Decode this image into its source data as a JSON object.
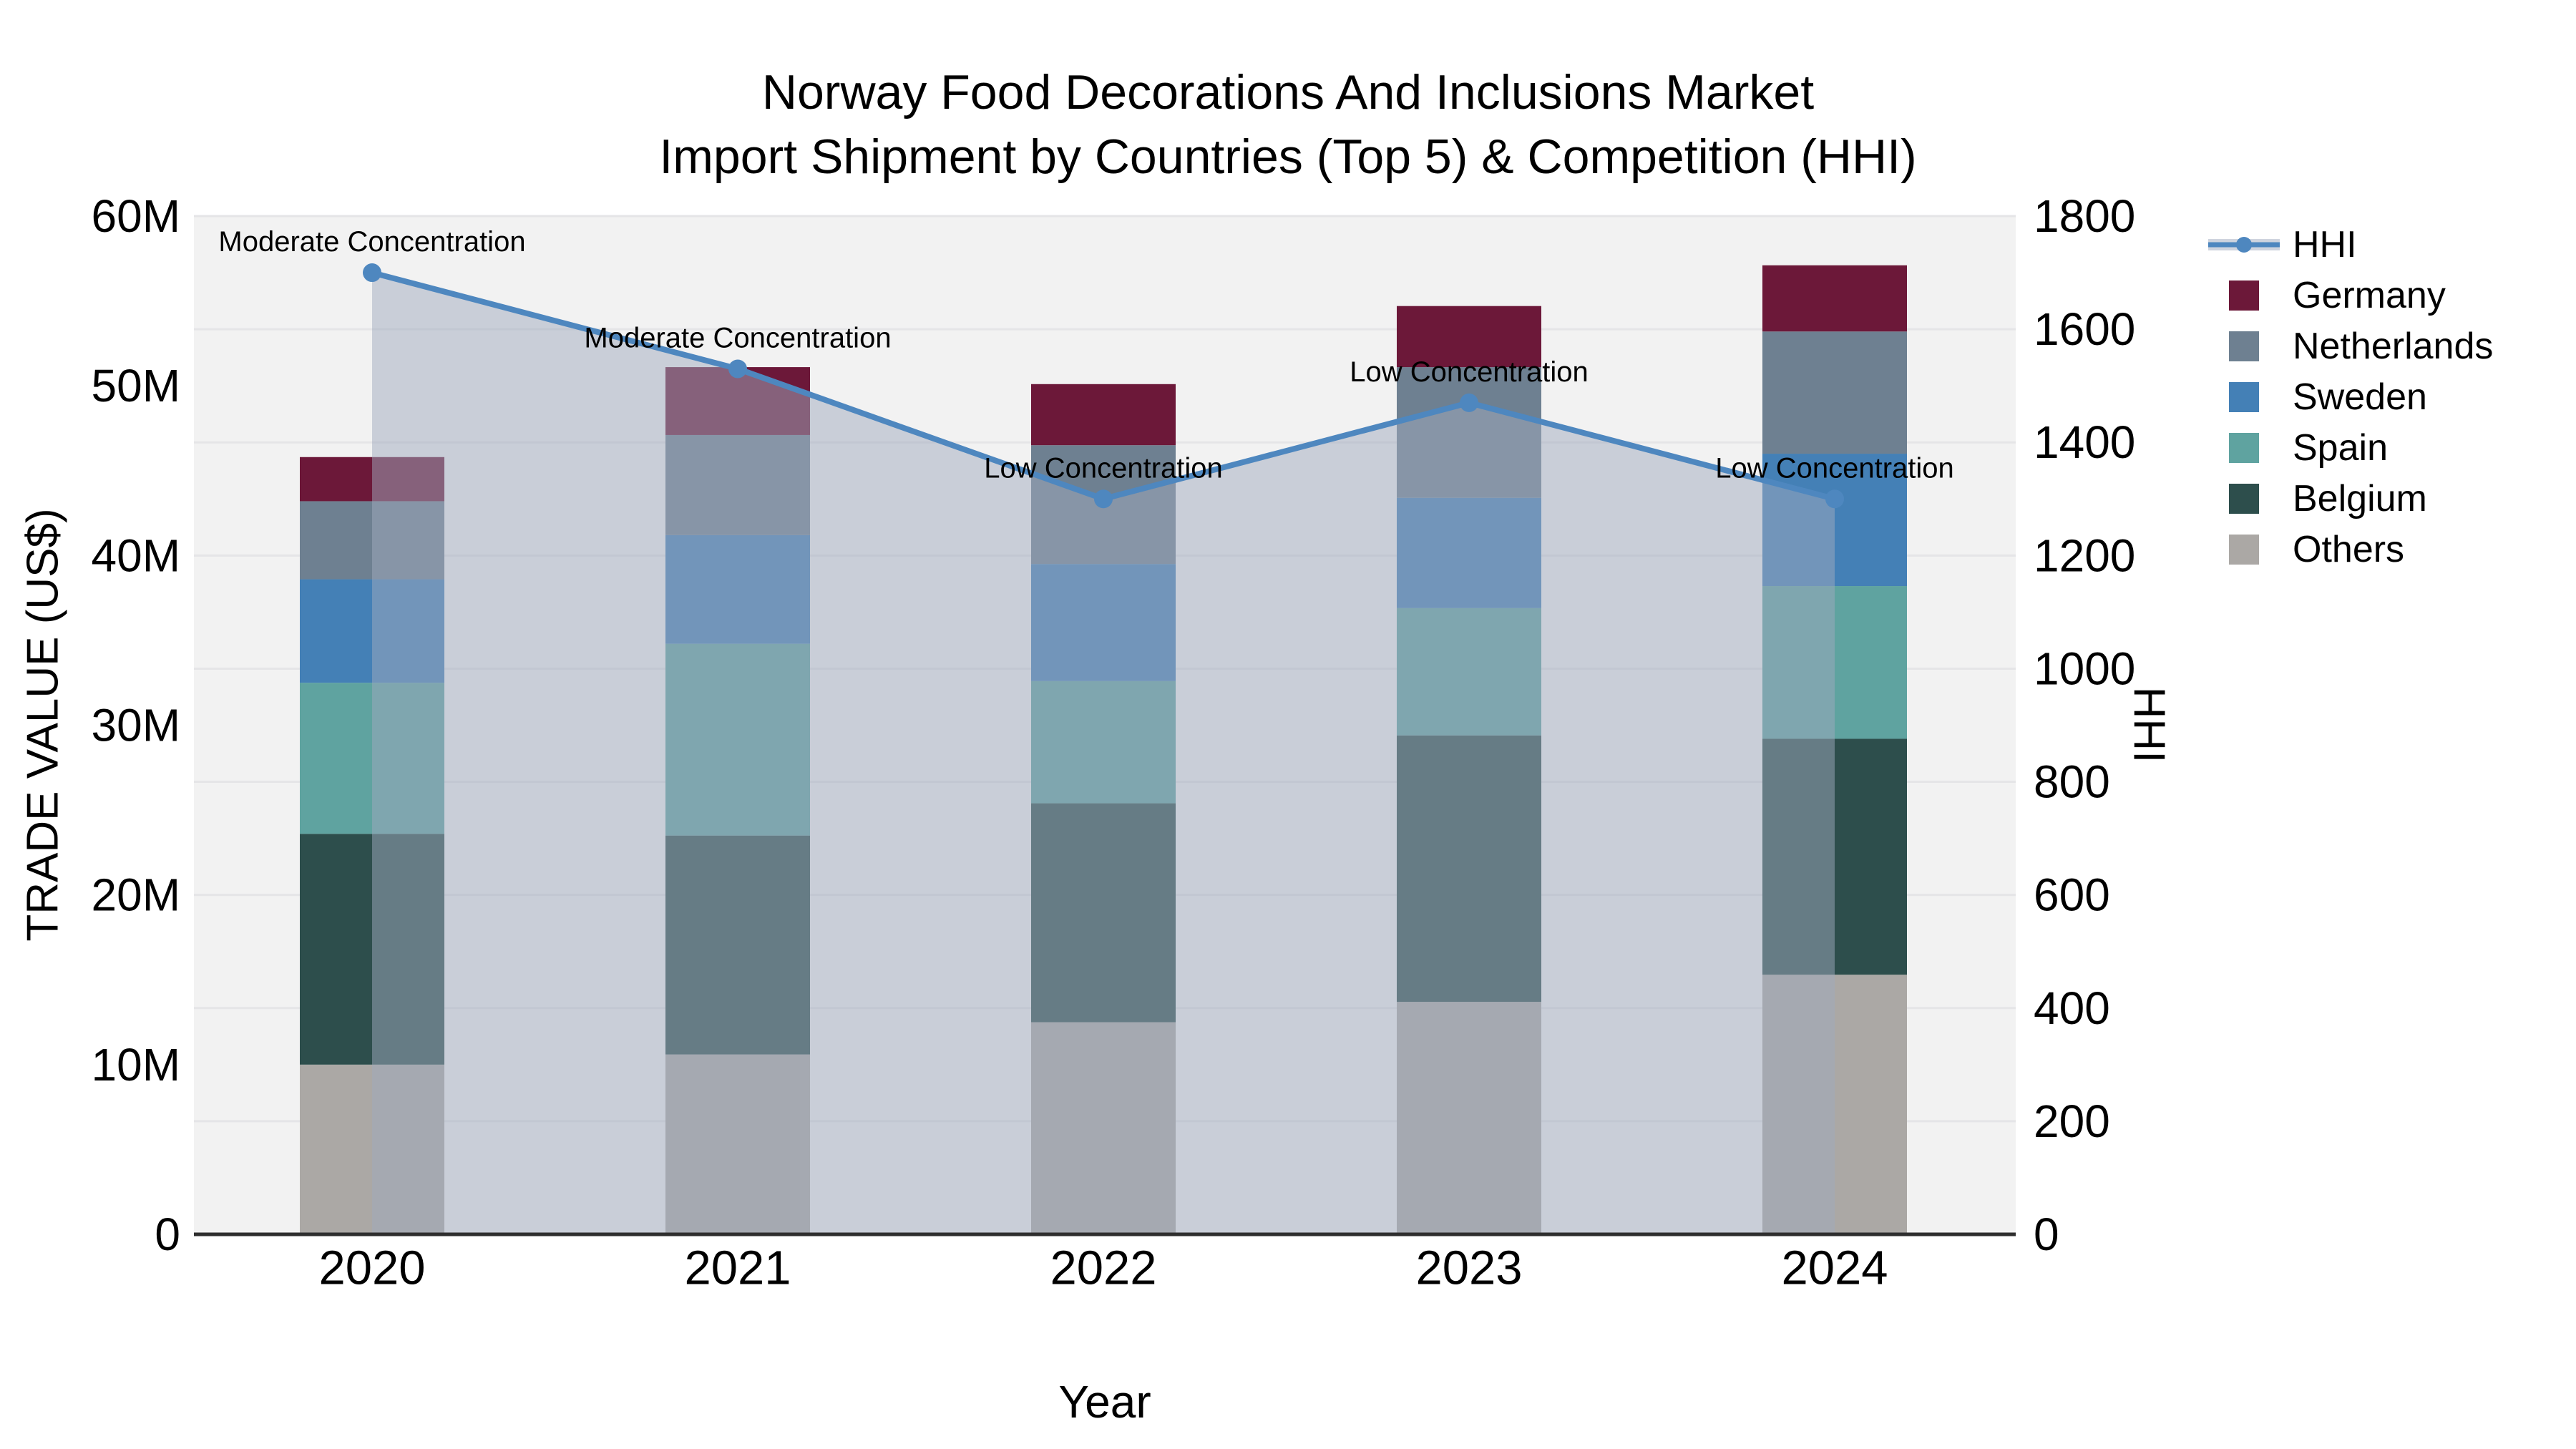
{
  "chart_data": {
    "type": "stacked-bar+line",
    "title_line1": "Norway Food Decorations And Inclusions Market",
    "title_line2": "Import Shipment by Countries (Top 5) & Competition (HHI)",
    "xlabel": "Year",
    "ylabel_left": "TRADE VALUE (US$)",
    "ylabel_right": "HHI",
    "categories": [
      "2020",
      "2021",
      "2022",
      "2023",
      "2024"
    ],
    "bar_value_unit": "million US$",
    "bar_series": [
      {
        "name": "Germany",
        "color": "#6C1839",
        "values": [
          2.6,
          4.0,
          3.6,
          3.6,
          3.9
        ]
      },
      {
        "name": "Netherlands",
        "color": "#6E8091",
        "values": [
          4.6,
          5.9,
          7.0,
          7.7,
          7.2
        ]
      },
      {
        "name": "Sweden",
        "color": "#4480B6",
        "values": [
          6.1,
          6.4,
          6.9,
          6.5,
          7.8
        ]
      },
      {
        "name": "Spain",
        "color": "#5FA3A0",
        "values": [
          8.9,
          11.3,
          7.2,
          7.5,
          9.0
        ]
      },
      {
        "name": "Belgium",
        "color": "#2D4E4C",
        "values": [
          13.6,
          12.9,
          12.9,
          15.7,
          13.9
        ]
      },
      {
        "name": "Others",
        "color": "#ABA8A5",
        "values": [
          10.0,
          10.6,
          12.5,
          13.7,
          15.3
        ]
      }
    ],
    "stack_order_bottom_to_top": [
      "Others",
      "Belgium",
      "Spain",
      "Sweden",
      "Netherlands",
      "Germany"
    ],
    "line_series": {
      "name": "HHI",
      "color": "#4E87BF",
      "area_color": "rgba(160,170,190,0.5)",
      "values": [
        1700,
        1530,
        1300,
        1470,
        1300
      ]
    },
    "annotations": [
      "Moderate Concentration",
      "Moderate Concentration",
      "Low Concentration",
      "Low Concentration",
      "Low Concentration"
    ],
    "y_left": {
      "ticks": [
        "0",
        "10M",
        "20M",
        "30M",
        "40M",
        "50M",
        "60M"
      ],
      "min": 0,
      "max": 60
    },
    "y_right": {
      "ticks": [
        "0",
        "200",
        "400",
        "600",
        "800",
        "1000",
        "1200",
        "1400",
        "1600",
        "1800"
      ],
      "min": 0,
      "max": 1800
    },
    "legend_items": [
      "HHI",
      "Germany",
      "Netherlands",
      "Sweden",
      "Spain",
      "Belgium",
      "Others"
    ],
    "colors": {
      "plot_background": "#F2F2F2",
      "gridline": "#E5E5E7",
      "axis_line": "#2E2E2E",
      "text": "#000000"
    }
  }
}
